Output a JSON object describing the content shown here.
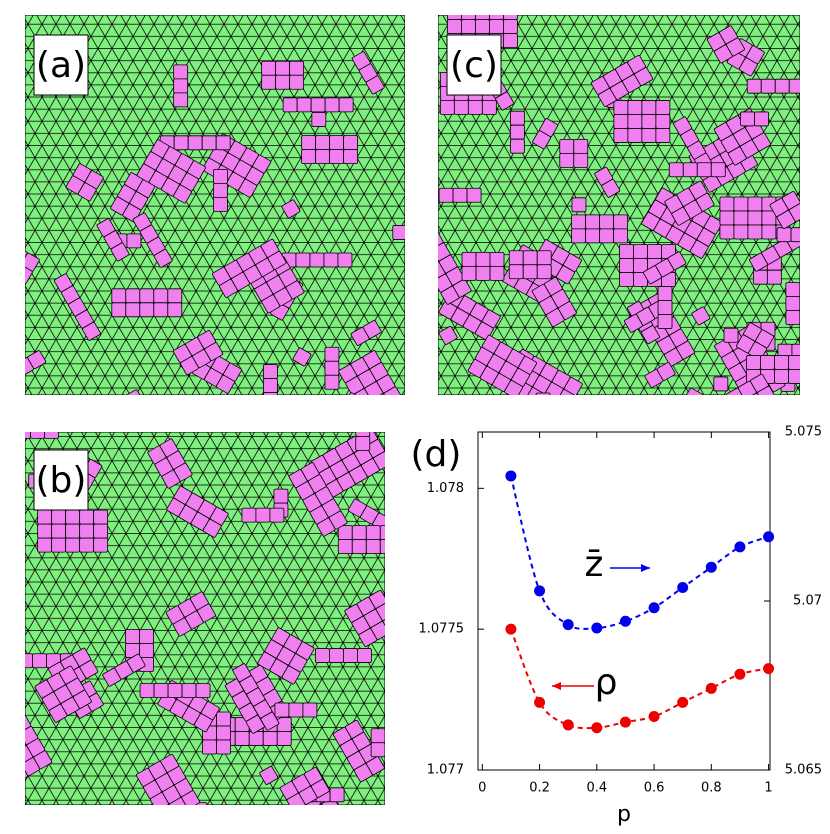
{
  "panels": [
    {
      "label": "(a)"
    },
    {
      "label": "(b)"
    },
    {
      "label": "(c)"
    }
  ],
  "chart_data": {
    "type": "line",
    "label": "(d)",
    "xlabel": "p",
    "x": [
      0.1,
      0.2,
      0.3,
      0.4,
      0.5,
      0.6,
      0.7,
      0.8,
      0.9,
      1.0
    ],
    "xlim": [
      -0.015,
      1.005
    ],
    "xticks": [
      0,
      0.2,
      0.4,
      0.6,
      0.8,
      1
    ],
    "ylim": [
      1.077,
      1.0782
    ],
    "yticks": [
      1.077,
      1.0775,
      1.078
    ],
    "y2lim": [
      5.065,
      5.075
    ],
    "y2ticks": [
      5.065,
      5.07,
      5.075
    ],
    "line_style": "dashed",
    "series": [
      {
        "name": "z̄",
        "color": "#0000ee",
        "axis": "y2",
        "values": [
          5.0737,
          5.0703,
          5.0693,
          5.0692,
          5.0694,
          5.0698,
          5.0704,
          5.071,
          5.0716,
          5.0719
        ]
      },
      {
        "name": "ρ",
        "color": "#ee0000",
        "values": [
          1.0775,
          1.07724,
          1.07716,
          1.07715,
          1.07717,
          1.07719,
          1.07724,
          1.07729,
          1.07734,
          1.07736
        ]
      }
    ]
  }
}
